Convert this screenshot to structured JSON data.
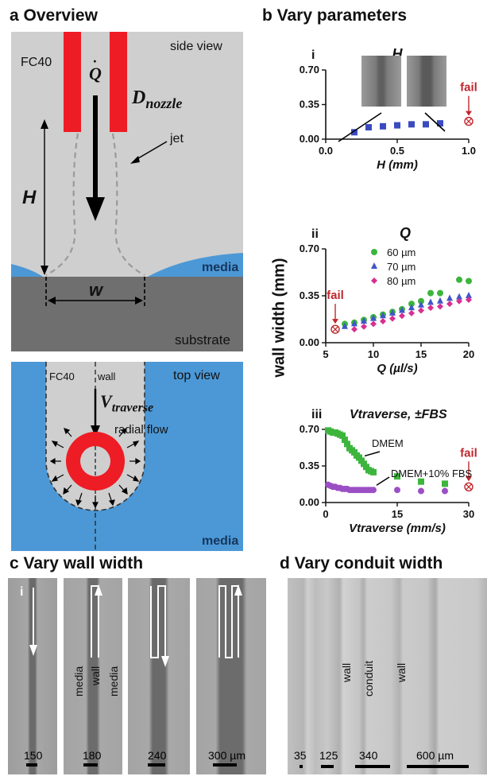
{
  "panel_a": {
    "title": "a  Overview",
    "side_view": {
      "label_view": "side view",
      "label_fc40": "FC40",
      "label_q": "Q",
      "label_dnozzle": "D",
      "label_dnozzle_sub": "nozzle",
      "label_jet": "jet",
      "label_h": "H",
      "label_media": "media",
      "label_w": "w",
      "label_substrate": "substrate",
      "colors": {
        "fluid": "#cfcfcf",
        "nozzle": "#ee1c24",
        "media": "#4c98d6",
        "substrate": "#6f6f6f"
      }
    },
    "top_view": {
      "label_view": "top view",
      "label_fc40": "FC40",
      "label_wall": "wall",
      "label_v": "V",
      "label_v_sub": "traverse",
      "label_radial": "radial flow",
      "label_media": "media"
    }
  },
  "panel_b": {
    "title": "b  Vary parameters",
    "ylabel": "wall width (mm)",
    "fail_label": "fail",
    "chart_data": [
      {
        "id": "i",
        "type": "scatter",
        "title": "H",
        "xlabel": "H (mm)",
        "xlim": [
          0.0,
          1.0
        ],
        "ylim": [
          0.0,
          0.7
        ],
        "xticks": [
          "0.0",
          "0.5",
          "1.0"
        ],
        "yticks": [
          "0.00",
          "0.35",
          "0.70"
        ],
        "series": [
          {
            "color": "#3a4bbf",
            "marker": "square",
            "x": [
              0.2,
              0.3,
              0.4,
              0.5,
              0.6,
              0.7,
              0.8
            ],
            "y": [
              0.07,
              0.12,
              0.13,
              0.14,
              0.15,
              0.15,
              0.16
            ]
          }
        ],
        "fail": {
          "x": 1.0,
          "y": 0.18
        }
      },
      {
        "id": "ii",
        "type": "scatter",
        "title": "Q",
        "xlabel": "Q (µl/s)",
        "xlim": [
          5,
          20
        ],
        "ylim": [
          0.0,
          0.7
        ],
        "xticks": [
          "5",
          "10",
          "15",
          "20"
        ],
        "yticks": [
          "0.00",
          "0.35",
          "0.70"
        ],
        "series": [
          {
            "name": "60 µm",
            "color": "#3db53d",
            "marker": "circle",
            "x": [
              7,
              8,
              9,
              10,
              11,
              12,
              13,
              14,
              15,
              16,
              17,
              19,
              20
            ],
            "y": [
              0.14,
              0.15,
              0.17,
              0.19,
              0.21,
              0.23,
              0.25,
              0.29,
              0.31,
              0.37,
              0.37,
              0.47,
              0.46
            ]
          },
          {
            "name": "70 µm",
            "color": "#3e57c9",
            "marker": "triangle",
            "x": [
              7,
              8,
              9,
              10,
              11,
              12,
              13,
              14,
              15,
              16,
              17,
              18,
              19,
              20
            ],
            "y": [
              0.12,
              0.14,
              0.16,
              0.18,
              0.2,
              0.22,
              0.24,
              0.26,
              0.28,
              0.3,
              0.31,
              0.33,
              0.34,
              0.35
            ]
          },
          {
            "name": "80 µm",
            "color": "#d82f92",
            "marker": "diamond",
            "x": [
              8,
              9,
              10,
              11,
              12,
              13,
              14,
              15,
              16,
              17,
              18,
              19,
              20
            ],
            "y": [
              0.1,
              0.12,
              0.14,
              0.16,
              0.18,
              0.2,
              0.22,
              0.24,
              0.26,
              0.27,
              0.29,
              0.31,
              0.32
            ]
          }
        ],
        "fail": {
          "x": 6,
          "y": 0.1
        }
      },
      {
        "id": "iii",
        "type": "scatter",
        "title": "Vtraverse, ±FBS",
        "xlabel": "Vtraverse (mm/s)",
        "xlim": [
          0,
          30
        ],
        "ylim": [
          0.0,
          0.7
        ],
        "xticks": [
          "0",
          "15",
          "30"
        ],
        "yticks": [
          "0.00",
          "0.35",
          "0.70"
        ],
        "series": [
          {
            "name": "DMEM",
            "color": "#3db53d",
            "marker": "square",
            "x": [
              0.5,
              1,
              1.5,
              2,
              2.5,
              3,
              3.5,
              4,
              4.5,
              5,
              5.5,
              6,
              6.5,
              7,
              7.5,
              8,
              8.5,
              9,
              9.5,
              10,
              15,
              20,
              25
            ],
            "y": [
              0.69,
              0.68,
              0.67,
              0.67,
              0.66,
              0.65,
              0.64,
              0.6,
              0.56,
              0.52,
              0.5,
              0.48,
              0.45,
              0.43,
              0.4,
              0.37,
              0.34,
              0.31,
              0.3,
              0.29,
              0.25,
              0.2,
              0.18
            ]
          },
          {
            "name": "DMEM+10% FBS",
            "color": "#9b4fc4",
            "marker": "circle",
            "x": [
              0.5,
              1,
              1.5,
              2,
              2.5,
              3,
              3.5,
              4,
              4.5,
              5,
              5.5,
              6,
              6.5,
              7,
              7.5,
              8,
              8.5,
              9,
              9.5,
              10,
              15,
              20,
              25
            ],
            "y": [
              0.17,
              0.16,
              0.15,
              0.15,
              0.14,
              0.14,
              0.13,
              0.13,
              0.13,
              0.12,
              0.12,
              0.12,
              0.12,
              0.12,
              0.12,
              0.12,
              0.12,
              0.12,
              0.12,
              0.12,
              0.12,
              0.11,
              0.11
            ]
          }
        ],
        "fail": {
          "x": 30,
          "y": 0.15
        }
      }
    ]
  },
  "panel_c": {
    "title": "c  Vary wall width",
    "sub_label": "i",
    "label_media": "media",
    "label_wall": "wall",
    "scale_labels": [
      "150",
      "180",
      "240",
      "300 µm"
    ]
  },
  "panel_d": {
    "title": "d  Vary conduit width",
    "label_wall": "wall",
    "label_conduit": "conduit",
    "scale_labels": [
      "35",
      "125",
      "340",
      "600 µm"
    ]
  }
}
